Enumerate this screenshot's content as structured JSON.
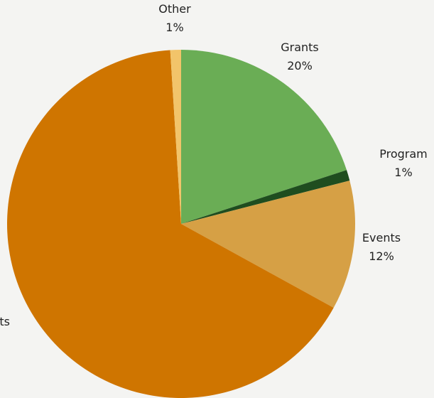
{
  "chart_data": {
    "type": "pie",
    "categories": [
      "Grants",
      "Program",
      "Events",
      "ts",
      "Other"
    ],
    "values": [
      20,
      1,
      12,
      66,
      1
    ],
    "value_labels": [
      "20%",
      "1%",
      "12%",
      null,
      "1%"
    ],
    "colors": [
      "#6aad55",
      "#1f4d1f",
      "#d6a045",
      "#cf7500",
      "#f2c46a"
    ]
  }
}
